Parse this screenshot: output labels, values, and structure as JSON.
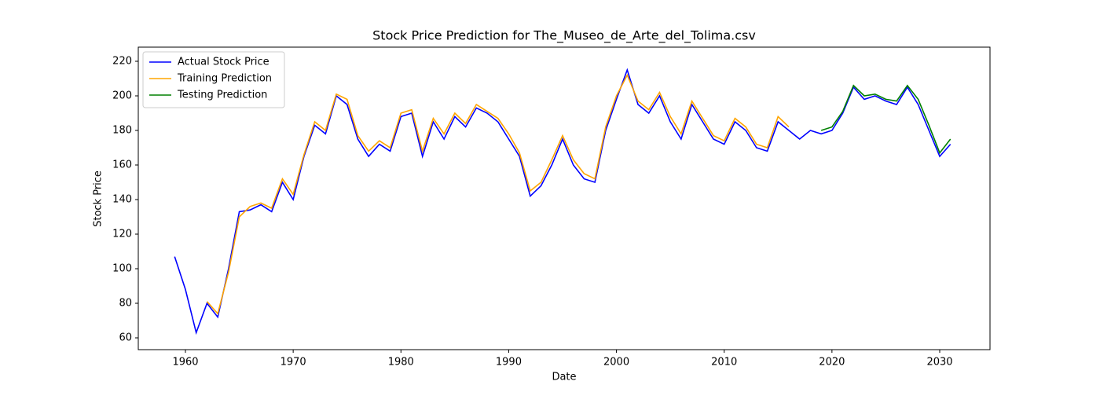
{
  "chart_data": {
    "type": "line",
    "title": "Stock Price Prediction for The_Museo_de_Arte_del_Tolima.csv",
    "x_label": "Date",
    "y_label": "Stock Price",
    "x": [
      1959,
      1960,
      1961,
      1962,
      1963,
      1964,
      1965,
      1966,
      1967,
      1968,
      1969,
      1970,
      1971,
      1972,
      1973,
      1974,
      1975,
      1976,
      1977,
      1978,
      1979,
      1980,
      1981,
      1982,
      1983,
      1984,
      1985,
      1986,
      1987,
      1988,
      1989,
      1990,
      1991,
      1992,
      1993,
      1994,
      1995,
      1996,
      1997,
      1998,
      1999,
      2000,
      2001,
      2002,
      2003,
      2004,
      2005,
      2006,
      2007,
      2008,
      2009,
      2010,
      2011,
      2012,
      2013,
      2014,
      2015,
      2016,
      2017,
      2018,
      2019,
      2020,
      2021,
      2022,
      2023,
      2024,
      2025,
      2026,
      2027,
      2028,
      2029,
      2030,
      2031
    ],
    "series": [
      {
        "name": "Actual Stock Price",
        "color": "#0000ff",
        "values": [
          107,
          88,
          63,
          80,
          72,
          100,
          133,
          134,
          137,
          133,
          150,
          140,
          165,
          183,
          178,
          200,
          195,
          175,
          165,
          172,
          168,
          188,
          190,
          165,
          185,
          175,
          188,
          182,
          193,
          190,
          185,
          175,
          165,
          142,
          148,
          160,
          175,
          160,
          152,
          150,
          180,
          198,
          215,
          195,
          190,
          200,
          185,
          175,
          195,
          185,
          175,
          172,
          185,
          180,
          170,
          168,
          185,
          180,
          175,
          180,
          178,
          180,
          190,
          205,
          198,
          200,
          197,
          195,
          205,
          195,
          180,
          165,
          172
        ]
      },
      {
        "name": "Training Prediction",
        "color": "#ffa500",
        "values": [
          null,
          null,
          null,
          81,
          74,
          98,
          130,
          136,
          138,
          135,
          152,
          143,
          166,
          185,
          180,
          201,
          198,
          177,
          168,
          174,
          170,
          190,
          192,
          168,
          187,
          178,
          190,
          184,
          195,
          191,
          187,
          178,
          167,
          145,
          150,
          163,
          177,
          163,
          155,
          152,
          182,
          200,
          212,
          197,
          192,
          202,
          188,
          178,
          197,
          187,
          177,
          174,
          187,
          182,
          172,
          170,
          188,
          182,
          null,
          null,
          null,
          null,
          null,
          null,
          null,
          null,
          null,
          null,
          null,
          null,
          null,
          null,
          null
        ]
      },
      {
        "name": "Testing Prediction",
        "color": "#008000",
        "values": [
          null,
          null,
          null,
          null,
          null,
          null,
          null,
          null,
          null,
          null,
          null,
          null,
          null,
          null,
          null,
          null,
          null,
          null,
          null,
          null,
          null,
          null,
          null,
          null,
          null,
          null,
          null,
          null,
          null,
          null,
          null,
          null,
          null,
          null,
          null,
          null,
          null,
          null,
          null,
          null,
          null,
          null,
          null,
          null,
          null,
          null,
          null,
          null,
          null,
          null,
          null,
          null,
          null,
          null,
          null,
          null,
          null,
          null,
          null,
          null,
          180,
          182,
          191,
          206,
          200,
          201,
          198,
          197,
          206,
          198,
          183,
          167,
          175
        ]
      }
    ],
    "xlim": [
      1955.625,
      2034.667
    ],
    "xticks": [
      1960,
      1970,
      1980,
      1990,
      2000,
      2010,
      2020,
      2030
    ],
    "ylim": [
      53.18,
      228.18
    ],
    "yticks": [
      60,
      80,
      100,
      120,
      140,
      160,
      180,
      200,
      220
    ],
    "grid": false,
    "legend": "upper left"
  }
}
